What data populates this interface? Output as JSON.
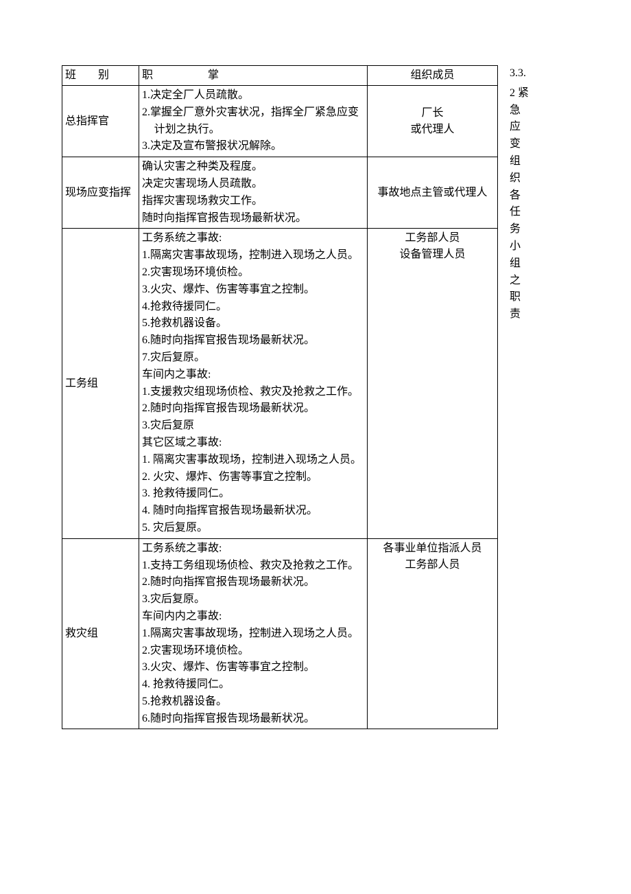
{
  "side": {
    "label": "3.3.",
    "number": "2",
    "chars": [
      "紧",
      "急",
      "应",
      "变",
      "组",
      "织",
      "各",
      "任",
      "务",
      "小",
      "组",
      "之",
      "职",
      "责"
    ]
  },
  "table": {
    "headers": {
      "col1": "班　　别",
      "col2": "职　　　　　掌",
      "col3": "组织成员"
    },
    "rows": [
      {
        "name": "总指挥官",
        "members": "厂长\n或代理人",
        "duties": [
          {
            "t": "item",
            "text": "1.决定全厂人员疏散。"
          },
          {
            "t": "item",
            "text": "2.掌握全厂意外灾害状况，指挥全厂紧急应变计划之执行。"
          },
          {
            "t": "item",
            "text": "3.决定及宣布警报状况解除。"
          }
        ]
      },
      {
        "name": "现场应变指挥",
        "members": "事故地点主管或代理人",
        "duties": [
          {
            "t": "head",
            "text": "确认灾害之种类及程度。"
          },
          {
            "t": "head",
            "text": "决定灾害现场人员疏散。"
          },
          {
            "t": "head",
            "text": "指挥灾害现场救灾工作。"
          },
          {
            "t": "head",
            "text": "随时向指挥官报告现场最新状况。"
          }
        ]
      },
      {
        "name": "工务组",
        "members": "工务部人员\n设备管理人员",
        "membersAlign": "top",
        "duties": [
          {
            "t": "head",
            "text": "工务系统之事故:"
          },
          {
            "t": "item",
            "text": "1.隔离灾害事故现场，控制进入现场之人员。"
          },
          {
            "t": "item",
            "text": "2.灾害现场环境侦检。"
          },
          {
            "t": "item",
            "text": "3.火灾、爆炸、伤害等事宜之控制。"
          },
          {
            "t": "item",
            "text": "4.抢救待援同仁。"
          },
          {
            "t": "item",
            "text": "5.抢救机器设备。"
          },
          {
            "t": "item",
            "text": "6.随时向指挥官报告现场最新状况。"
          },
          {
            "t": "item",
            "text": "7.灾后复原。"
          },
          {
            "t": "head",
            "text": "车间内之事故:"
          },
          {
            "t": "item",
            "text": "1.支援救灾组现场侦检、救灾及抢救之工作。"
          },
          {
            "t": "item",
            "text": "2.随时向指挥官报告现场最新状况。"
          },
          {
            "t": "item",
            "text": "3.灾后复原"
          },
          {
            "t": "head",
            "text": "其它区域之事故:"
          },
          {
            "t": "item",
            "text": "1. 隔离灾害事故现场，控制进入现场之人员。"
          },
          {
            "t": "item",
            "text": "2. 火灾、爆炸、伤害等事宜之控制。"
          },
          {
            "t": "item",
            "text": "3. 抢救待援同仁。"
          },
          {
            "t": "item",
            "text": "4. 随时向指挥官报告现场最新状况。"
          },
          {
            "t": "item",
            "text": "5. 灾后复原。"
          }
        ]
      },
      {
        "name": "救灾组",
        "members": "各事业单位指派人员\n工务部人员",
        "membersAlign": "top",
        "duties": [
          {
            "t": "head",
            "text": "工务系统之事故:"
          },
          {
            "t": "item",
            "text": "1.支持工务组现场侦检、救灾及抢救之工作。"
          },
          {
            "t": "item",
            "text": "2.随时向指挥官报告现场最新状况。"
          },
          {
            "t": "item",
            "text": "3.灾后复原。"
          },
          {
            "t": "head",
            "text": "车间内内之事故:"
          },
          {
            "t": "item",
            "text": "1.隔离灾害事故现场，控制进入现场之人员。"
          },
          {
            "t": "item",
            "text": "2.灾害现场环境侦检。"
          },
          {
            "t": "item",
            "text": "3.火灾、爆炸、伤害等事宜之控制。"
          },
          {
            "t": "item",
            "text": "4. 抢救待援同仁。"
          },
          {
            "t": "item",
            "text": "5.抢救机器设备。"
          },
          {
            "t": "item",
            "text": "6.随时向指挥官报告现场最新状况。"
          }
        ]
      }
    ]
  }
}
